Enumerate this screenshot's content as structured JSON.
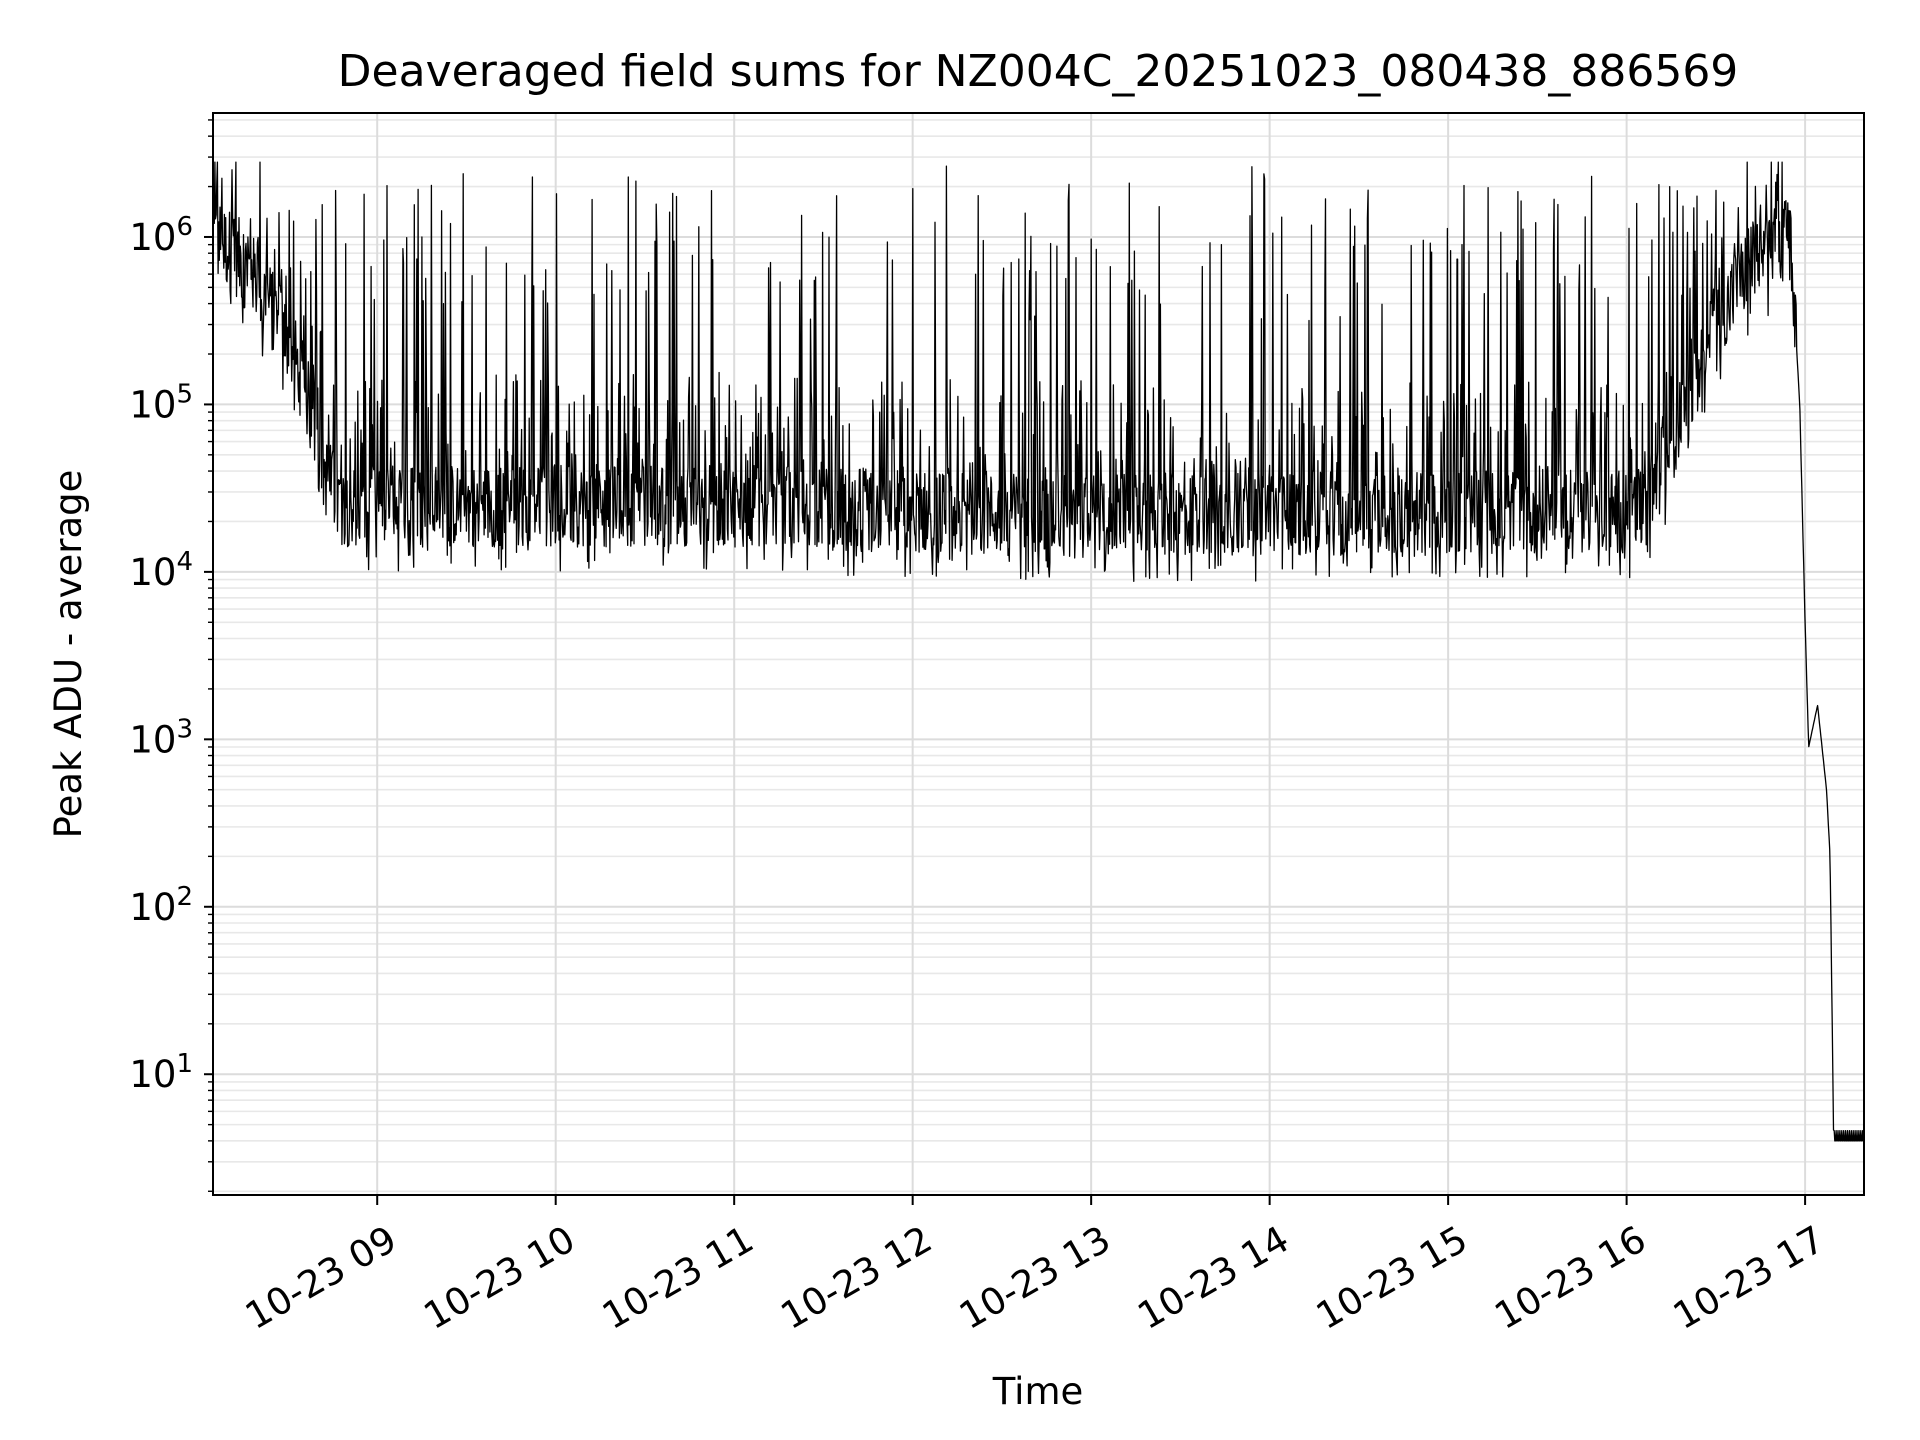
{
  "chart_data": {
    "type": "line",
    "title": "Deaveraged field sums for NZ004C_20251023_080438_886569",
    "xlabel": "Time",
    "ylabel": "Peak ADU - average",
    "yscale": "log",
    "ylim": [
      1.9,
      5500000
    ],
    "xlim_hours": [
      8.08,
      17.33
    ],
    "y_major_ticks": [
      {
        "value": 10,
        "base": "10",
        "exp": "1"
      },
      {
        "value": 100,
        "base": "10",
        "exp": "2"
      },
      {
        "value": 1000,
        "base": "10",
        "exp": "3"
      },
      {
        "value": 10000,
        "base": "10",
        "exp": "4"
      },
      {
        "value": 100000,
        "base": "10",
        "exp": "5"
      },
      {
        "value": 1000000,
        "base": "10",
        "exp": "6"
      }
    ],
    "x_ticks": [
      {
        "hour": 9,
        "label": "10-23 09"
      },
      {
        "hour": 10,
        "label": "10-23 10"
      },
      {
        "hour": 11,
        "label": "10-23 11"
      },
      {
        "hour": 12,
        "label": "10-23 12"
      },
      {
        "hour": 13,
        "label": "10-23 13"
      },
      {
        "hour": 14,
        "label": "10-23 14"
      },
      {
        "hour": 15,
        "label": "10-23 15"
      },
      {
        "hour": 16,
        "label": "10-23 16"
      },
      {
        "hour": 17,
        "label": "10-23 17"
      }
    ],
    "grid": true,
    "series": [
      {
        "name": "Peak ADU - average",
        "color": "#000000",
        "envelope_points": [
          {
            "hour": 8.08,
            "value": 1000000
          },
          {
            "hour": 8.2,
            "value": 800000
          },
          {
            "hour": 8.35,
            "value": 500000
          },
          {
            "hour": 8.5,
            "value": 250000
          },
          {
            "hour": 8.6,
            "value": 120000
          },
          {
            "hour": 8.7,
            "value": 40000
          },
          {
            "hour": 8.8,
            "value": 25000
          },
          {
            "hour": 9.5,
            "value": 25000
          },
          {
            "hour": 11.0,
            "value": 25000
          },
          {
            "hour": 12.5,
            "value": 22000
          },
          {
            "hour": 14.0,
            "value": 22000
          },
          {
            "hour": 15.5,
            "value": 23000
          },
          {
            "hour": 16.1,
            "value": 23000
          },
          {
            "hour": 16.3,
            "value": 80000
          },
          {
            "hour": 16.5,
            "value": 300000
          },
          {
            "hour": 16.7,
            "value": 700000
          },
          {
            "hour": 16.85,
            "value": 950000
          },
          {
            "hour": 16.92,
            "value": 900000
          },
          {
            "hour": 16.97,
            "value": 100000
          },
          {
            "hour": 17.0,
            "value": 5000
          },
          {
            "hour": 17.02,
            "value": 900
          },
          {
            "hour": 17.07,
            "value": 1600
          },
          {
            "hour": 17.12,
            "value": 500
          },
          {
            "hour": 17.14,
            "value": 200
          },
          {
            "hour": 17.16,
            "value": 4
          },
          {
            "hour": 17.33,
            "value": 4
          }
        ],
        "spike_peak_range": [
          500000,
          2800000
        ]
      }
    ]
  }
}
